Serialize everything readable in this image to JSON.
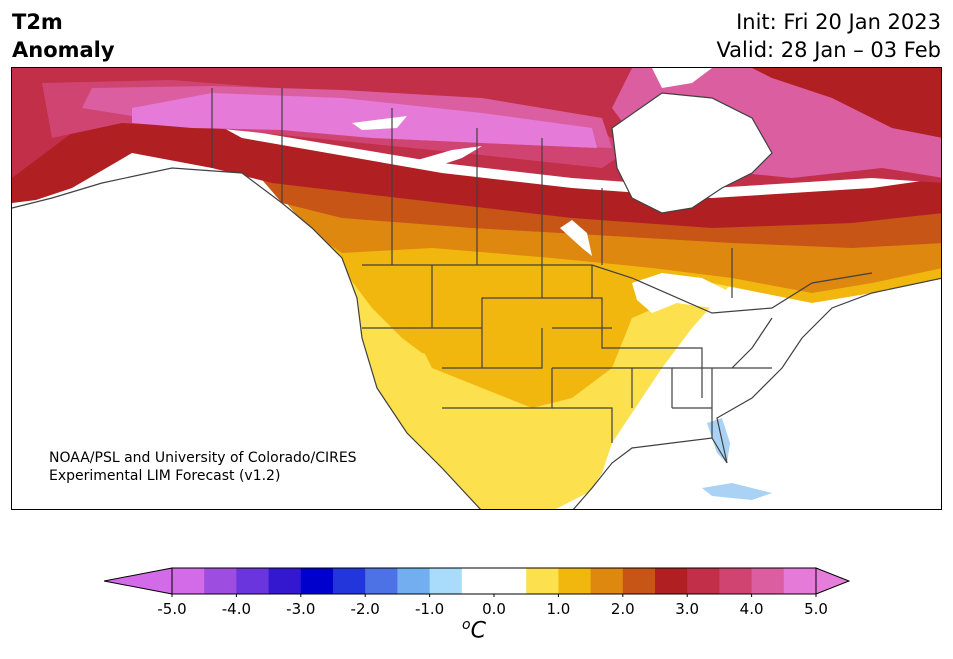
{
  "title": {
    "left_line1": "T2m",
    "left_line2": "Anomaly",
    "init": "Init: Fri 20 Jan 2023",
    "valid": "Valid: 28 Jan – 03 Feb"
  },
  "credit": {
    "line1": "NOAA/PSL and University of Colorado/CIRES",
    "line2": "Experimental LIM Forecast (v1.2)"
  },
  "colorbar": {
    "unit_sup": "o",
    "unit_main": "C",
    "ticks": [
      "-5.0",
      "-4.0",
      "-3.0",
      "-2.0",
      "-1.0",
      "0.0",
      "1.0",
      "2.0",
      "3.0",
      "4.0",
      "5.0"
    ],
    "colors": [
      "#d36ae8",
      "#9d4ee0",
      "#6a35dd",
      "#3418d0",
      "#0000cc",
      "#2236db",
      "#4d72e6",
      "#73aff0",
      "#a9dbfa",
      "#ffffff",
      "#ffffff",
      "#fde04d",
      "#f2b70f",
      "#de8810",
      "#c75516",
      "#b01f22",
      "#c12f48",
      "#d04472",
      "#db5ea0",
      "#e57ad8"
    ],
    "over_color": "#e77ddb",
    "under_color": "#d36ae8"
  },
  "anomaly_colors": {
    "ocean": "#ffffff",
    "lake_neg": "#a9d2f4",
    "c1": "#fde04d",
    "c2": "#f2b70f",
    "c3": "#de8810",
    "c4": "#c75516",
    "c5": "#b01f22",
    "c6": "#c12f48",
    "c7": "#d04472",
    "c8": "#db5ea0",
    "c9": "#e57ad8"
  }
}
